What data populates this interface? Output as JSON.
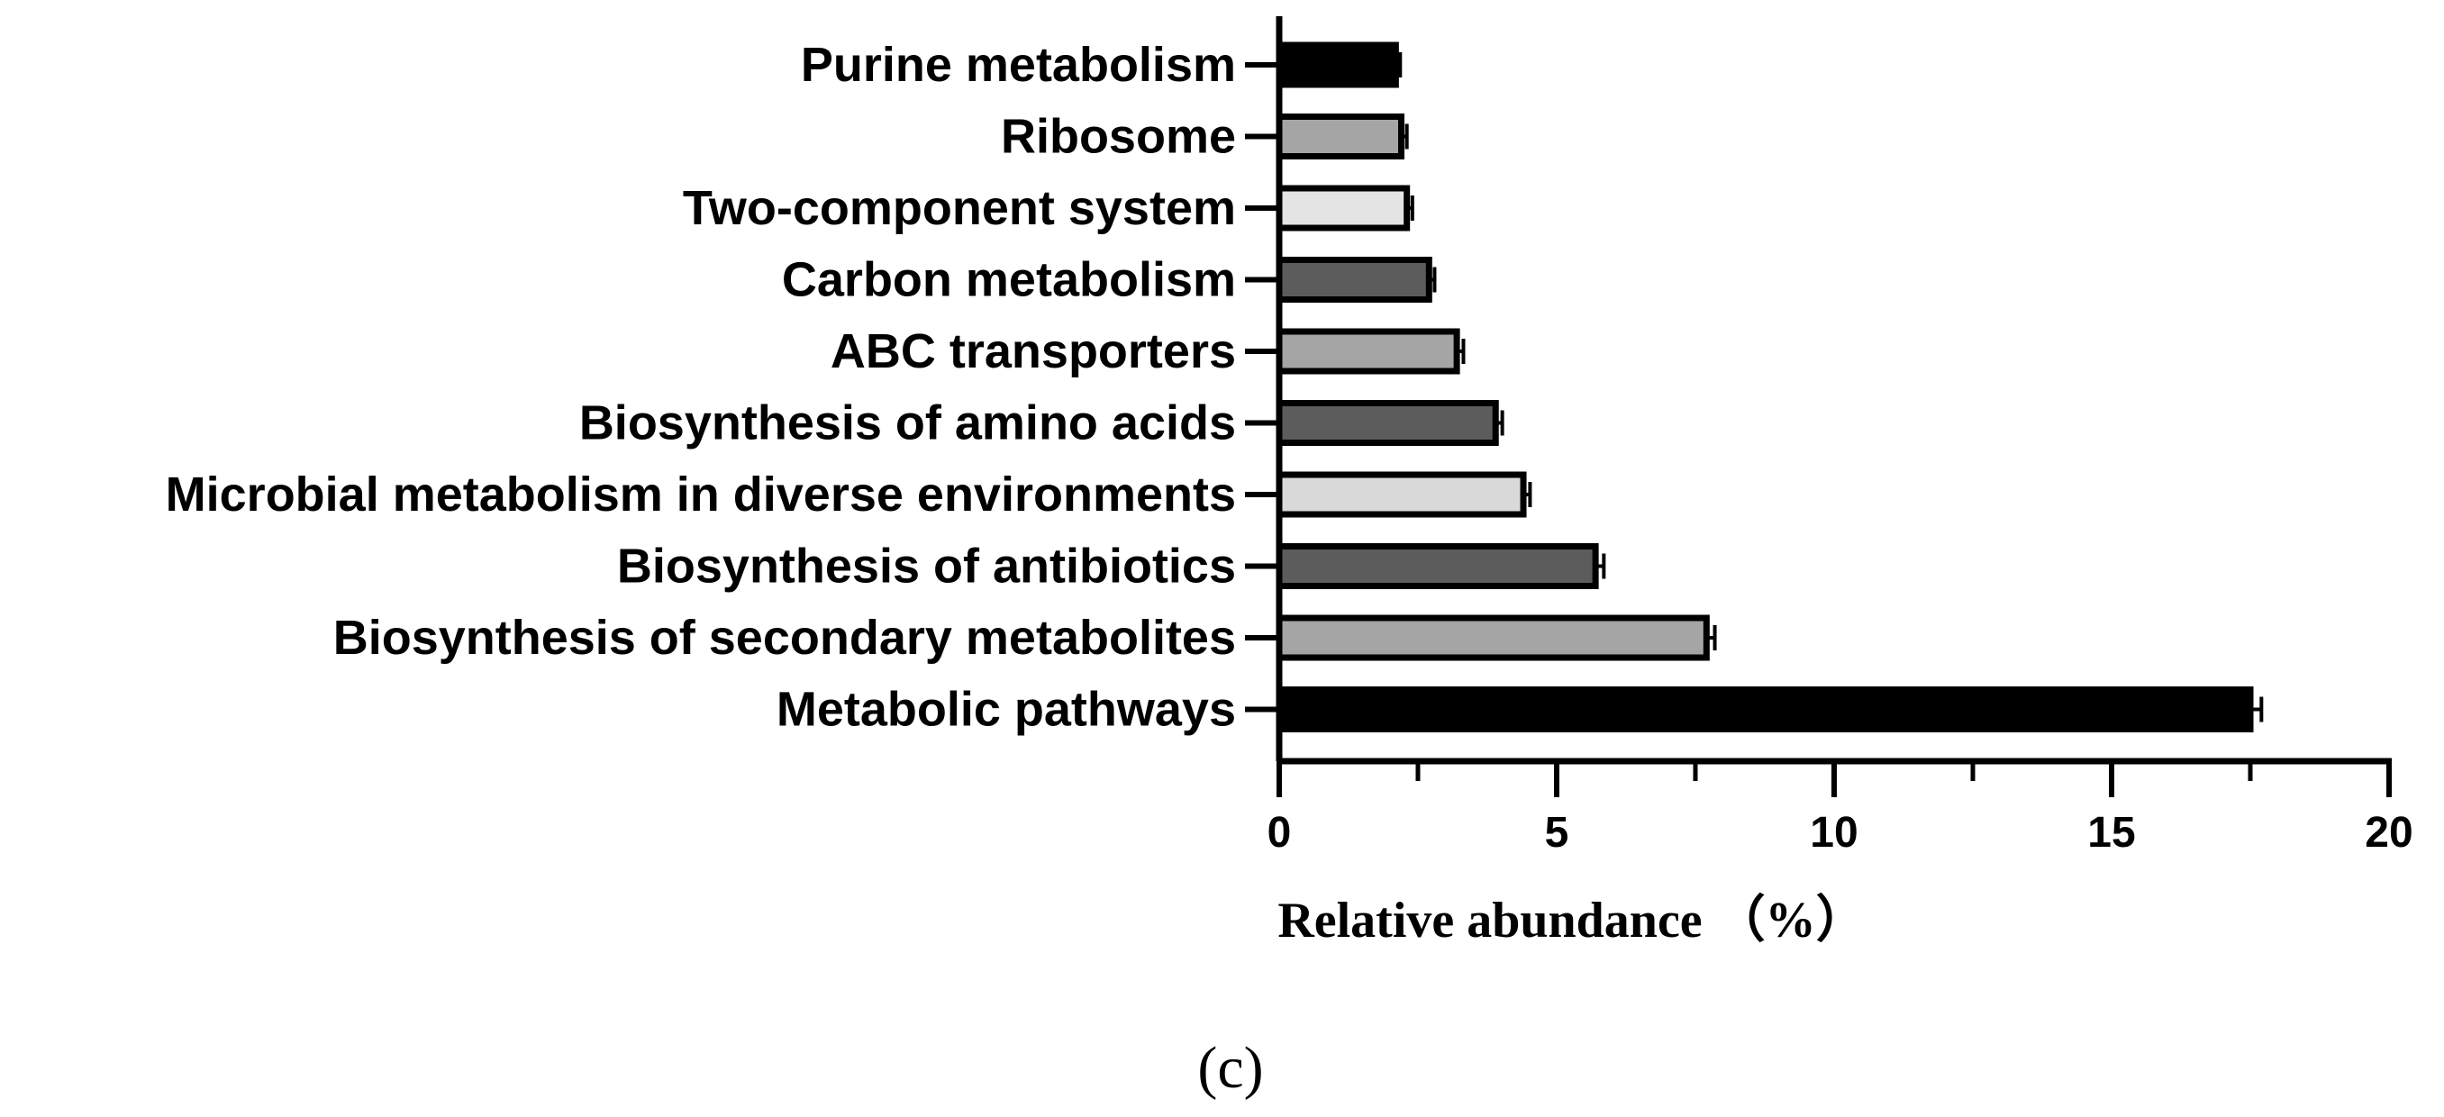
{
  "chart_data": {
    "type": "bar",
    "orientation": "horizontal",
    "categories": [
      "Purine metabolism",
      "Ribosome",
      "Two-component system",
      "Carbon metabolism",
      "ABC transporters",
      "Biosynthesis of amino acids",
      "Microbial metabolism in diverse environments",
      "Biosynthesis of antibiotics",
      "Biosynthesis of secondary metabolites",
      "Metabolic pathways"
    ],
    "values": [
      2.1,
      2.2,
      2.3,
      2.7,
      3.2,
      3.9,
      4.4,
      5.7,
      7.7,
      17.5
    ],
    "errors": [
      0.08,
      0.1,
      0.1,
      0.1,
      0.12,
      0.12,
      0.12,
      0.15,
      0.15,
      0.2
    ],
    "bar_colors": [
      "#000000",
      "#a5a5a5",
      "#e4e4e4",
      "#5c5c5c",
      "#a5a5a5",
      "#5c5c5c",
      "#d9d9d9",
      "#5c5c5c",
      "#a5a5a5",
      "#000000"
    ],
    "xlim": [
      0,
      20
    ],
    "xticks": [
      "0",
      "5",
      "10",
      "15",
      "20"
    ],
    "xlabel": "Relative abundance （%）",
    "ylabel": "",
    "title": ""
  },
  "panel_label": "(c)"
}
